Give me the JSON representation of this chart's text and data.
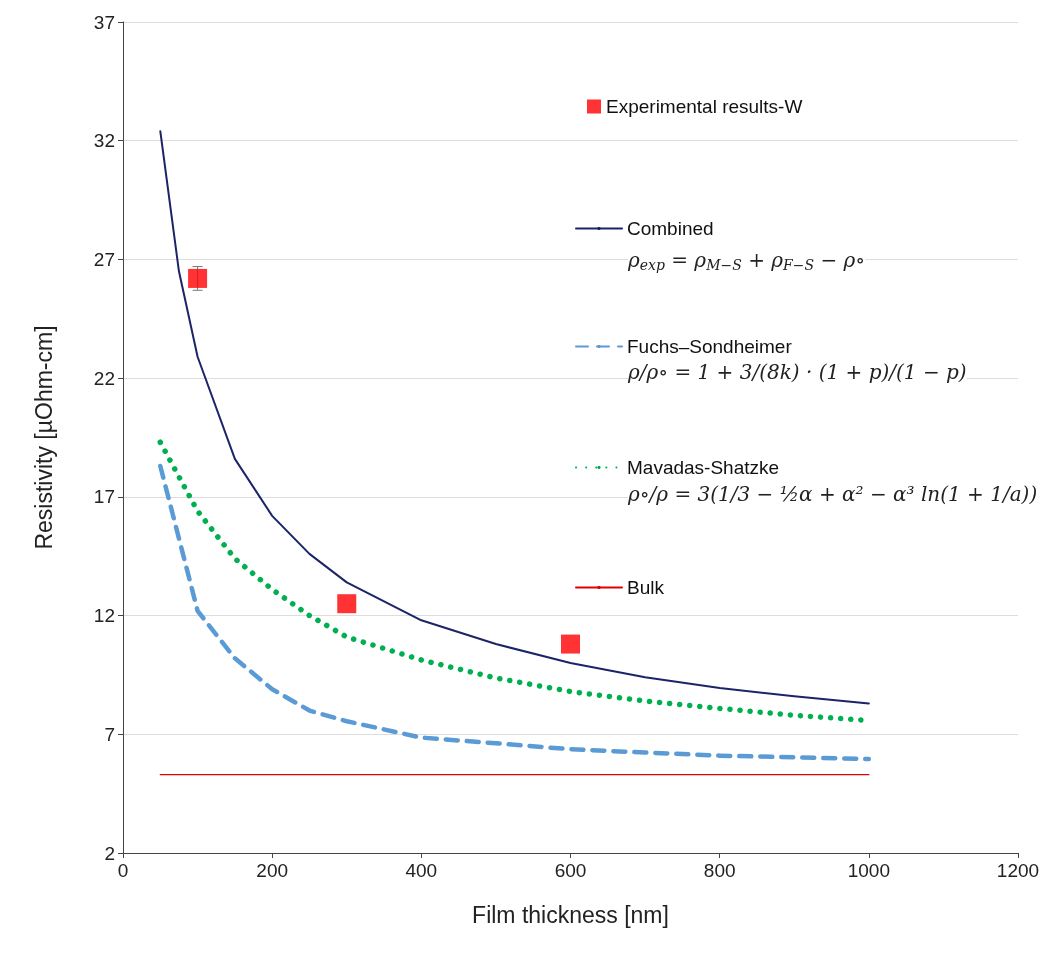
{
  "chart_data": {
    "type": "line",
    "xlabel": "Film thickness [nm]",
    "ylabel": "Resistivity [µOhm-cm]",
    "xlim": [
      0,
      1200
    ],
    "xticks": [
      0,
      200,
      400,
      600,
      800,
      1000,
      1200
    ],
    "ylim": [
      2,
      37
    ],
    "yticks": [
      2,
      7,
      12,
      17,
      22,
      27,
      32,
      37
    ],
    "grid": "y",
    "legend": "right",
    "series": [
      {
        "name": "Experimental results-W",
        "type": "scatter",
        "marker": "square",
        "color": "#ff0000",
        "x": [
          100,
          300,
          600
        ],
        "values": [
          26.2,
          12.5,
          10.8
        ],
        "errors": [
          0.5,
          null,
          null
        ]
      },
      {
        "name": "Combined",
        "color": "#1b2466",
        "line_style": "solid",
        "marker": "none",
        "x": [
          50,
          75,
          100,
          150,
          200,
          250,
          300,
          400,
          500,
          600,
          700,
          800,
          900,
          1000
        ],
        "values": [
          32.4,
          26.5,
          22.9,
          18.6,
          16.2,
          14.6,
          13.4,
          11.8,
          10.8,
          10.0,
          9.4,
          8.95,
          8.6,
          8.3
        ]
      },
      {
        "name": "Fuchs–Sondheimer",
        "color": "#5b9bd5",
        "line_style": "dashed",
        "marker": "none",
        "x": [
          50,
          100,
          150,
          200,
          250,
          300,
          400,
          500,
          600,
          700,
          800,
          900,
          1000
        ],
        "values": [
          18.3,
          12.2,
          10.2,
          8.9,
          8.0,
          7.55,
          6.86,
          6.62,
          6.37,
          6.23,
          6.1,
          6.03,
          5.96
        ]
      },
      {
        "name": "Mavadas-Shatzke",
        "color": "#00b050",
        "line_style": "dotted",
        "marker": "none",
        "x": [
          50,
          100,
          150,
          200,
          250,
          300,
          400,
          500,
          600,
          700,
          800,
          900,
          1000
        ],
        "values": [
          19.3,
          16.4,
          14.4,
          13.1,
          12.0,
          11.1,
          10.13,
          9.37,
          8.8,
          8.4,
          8.09,
          7.8,
          7.58
        ]
      },
      {
        "name": "Bulk",
        "color": "#e00000",
        "line_style": "solid",
        "marker": "none",
        "x": [
          50,
          1000
        ],
        "values": [
          5.3,
          5.3
        ]
      }
    ],
    "annotations": [
      "ρ$_{exp}$ = ρ$_{M−S}$ + ρ$_{F−S}$ − ρ∘",
      "ρ/ρ∘ = 1 + 3/(8k) · (1 + p)/(1 − p)",
      "ρ∘/ρ = 3(1/3 − ½α + α² − α³ ln(1 + 1/a))"
    ]
  }
}
